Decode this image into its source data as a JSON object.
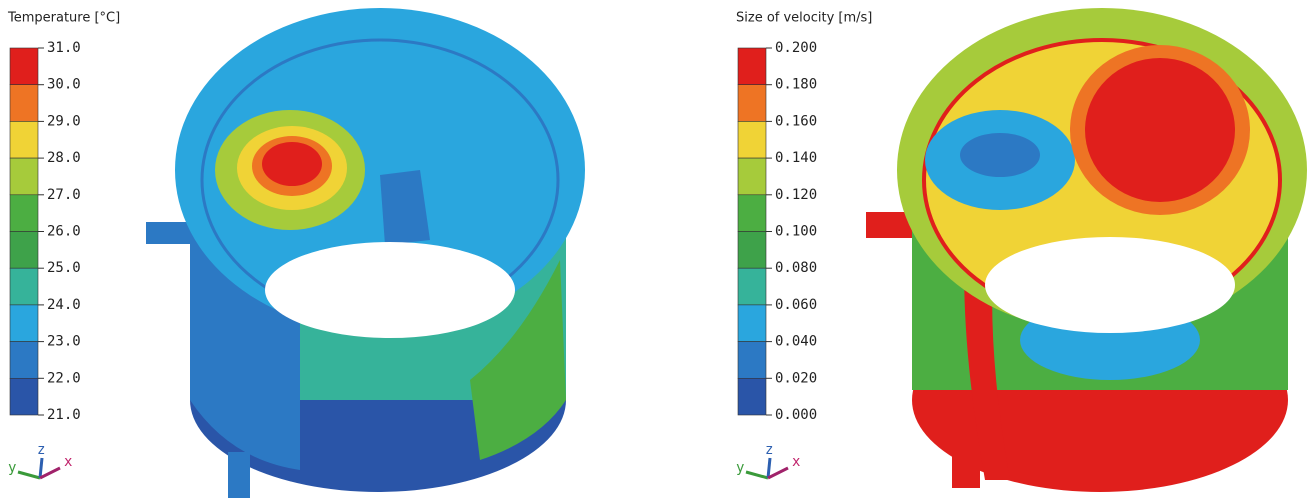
{
  "panels": [
    {
      "legend": {
        "title": "Temperature [°C]",
        "labels": [
          "31.0",
          "30.0",
          "29.0",
          "28.0",
          "27.0",
          "26.0",
          "25.0",
          "24.0",
          "23.0",
          "22.0",
          "21.0"
        ],
        "colors": [
          "#e01f1c",
          "#ee7424",
          "#f0d336",
          "#a6cb3b",
          "#4cae42",
          "#3ea24a",
          "#36b39a",
          "#2aa6de",
          "#2c79c4",
          "#2a55a8"
        ]
      },
      "axes": {
        "x": "x",
        "y": "y",
        "z": "z"
      }
    },
    {
      "legend": {
        "title": "Size of velocity [m/s]",
        "labels": [
          "0.200",
          "0.180",
          "0.160",
          "0.140",
          "0.120",
          "0.100",
          "0.080",
          "0.060",
          "0.040",
          "0.020",
          "0.000"
        ],
        "colors": [
          "#e01f1c",
          "#ee7424",
          "#f0d336",
          "#a6cb3b",
          "#4cae42",
          "#3ea24a",
          "#36b39a",
          "#2aa6de",
          "#2c79c4",
          "#2a55a8"
        ]
      },
      "axes": {
        "x": "x",
        "y": "y",
        "z": "z"
      }
    }
  ]
}
